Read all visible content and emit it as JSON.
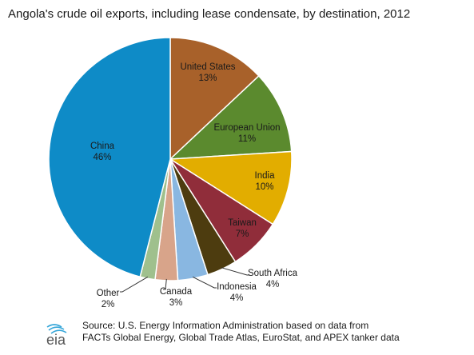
{
  "title": "Angola's crude oil exports, including lease condensate, by destination, 2012",
  "source": {
    "line1": "Source: U.S. Energy Information Administration based on data from",
    "line2": "FACTs Global Energy, Global Trade Atlas, EuroStat, and APEX tanker data",
    "logo_text": "eia"
  },
  "chart_data": {
    "type": "pie",
    "title": "Angola's crude oil exports, including lease condensate, by destination, 2012",
    "slices": [
      {
        "name": "United States",
        "label": "13%",
        "value": 13,
        "color": "#a8612a"
      },
      {
        "name": "European Union",
        "label": "11%",
        "value": 11,
        "color": "#5b8a2e"
      },
      {
        "name": "India",
        "label": "10%",
        "value": 10,
        "color": "#e2ad00"
      },
      {
        "name": "Taiwan",
        "label": "7%",
        "value": 7,
        "color": "#902d3a"
      },
      {
        "name": "South Africa",
        "label": "4%",
        "value": 4,
        "color": "#4d3c0f"
      },
      {
        "name": "Indonesia",
        "label": "4%",
        "value": 4,
        "color": "#89b7e1"
      },
      {
        "name": "Canada",
        "label": "3%",
        "value": 3,
        "color": "#d8a48a"
      },
      {
        "name": "Other",
        "label": "2%",
        "value": 2,
        "color": "#9fc08d"
      },
      {
        "name": "China",
        "label": "46%",
        "value": 46,
        "color": "#0e8bc7"
      }
    ]
  }
}
